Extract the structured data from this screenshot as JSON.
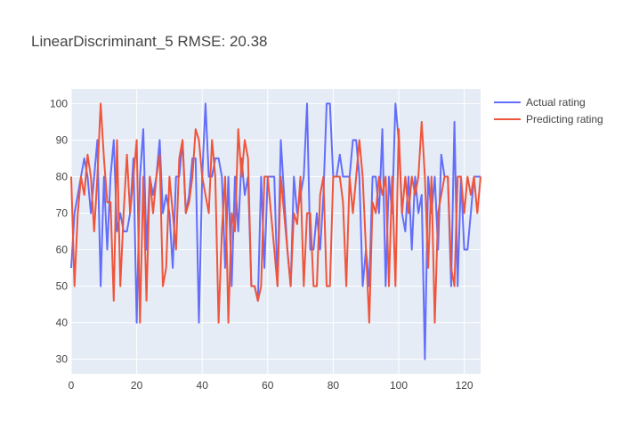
{
  "chart_data": {
    "type": "line",
    "title": "LinearDiscriminant_5 RMSE: 20.38",
    "xlabel": "",
    "ylabel": "",
    "xlim": [
      0,
      125
    ],
    "ylim": [
      26,
      104
    ],
    "x_ticks": [
      0,
      20,
      40,
      60,
      80,
      100,
      120
    ],
    "y_ticks": [
      30,
      40,
      50,
      60,
      70,
      80,
      90,
      100
    ],
    "grid": true,
    "legend_position": "top-right",
    "plot_bg": "#e5ecf6",
    "series": [
      {
        "name": "Actual rating",
        "color": "#636efa",
        "values": [
          55,
          70,
          75,
          80,
          85,
          80,
          70,
          80,
          90,
          50,
          80,
          60,
          80,
          90,
          65,
          70,
          65,
          65,
          70,
          85,
          40,
          80,
          93,
          60,
          80,
          75,
          80,
          90,
          70,
          75,
          70,
          55,
          80,
          80,
          90,
          70,
          75,
          85,
          85,
          40,
          80,
          100,
          80,
          80,
          85,
          85,
          80,
          55,
          80,
          50,
          80,
          65,
          85,
          75,
          80,
          50,
          50,
          46,
          80,
          55,
          80,
          80,
          80,
          50,
          90,
          75,
          60,
          50,
          80,
          70,
          75,
          80,
          100,
          60,
          60,
          70,
          60,
          75,
          100,
          100,
          80,
          80,
          86,
          80,
          80,
          80,
          90,
          90,
          80,
          50,
          60,
          50,
          80,
          80,
          70,
          93,
          50,
          80,
          70,
          100,
          90,
          70,
          65,
          80,
          60,
          80,
          70,
          75,
          30,
          80,
          70,
          80,
          60,
          86,
          80,
          80,
          50,
          95,
          50,
          80,
          60,
          60,
          70,
          80,
          80,
          80
        ]
      },
      {
        "name": "Predicting rating",
        "color": "#ef553b",
        "values": [
          80,
          50,
          70,
          80,
          75,
          86,
          80,
          65,
          80,
          100,
          85,
          73,
          73,
          46,
          90,
          50,
          70,
          86,
          70,
          80,
          90,
          40,
          80,
          46,
          80,
          70,
          80,
          86,
          50,
          55,
          80,
          70,
          60,
          85,
          90,
          70,
          73,
          80,
          93,
          90,
          80,
          75,
          70,
          90,
          80,
          40,
          65,
          80,
          40,
          70,
          65,
          93,
          80,
          90,
          85,
          50,
          50,
          46,
          50,
          80,
          80,
          70,
          60,
          50,
          80,
          70,
          60,
          50,
          70,
          67,
          80,
          50,
          70,
          70,
          50,
          50,
          75,
          80,
          50,
          50,
          80,
          80,
          80,
          73,
          50,
          80,
          70,
          80,
          90,
          80,
          60,
          40,
          73,
          70,
          80,
          75,
          80,
          50,
          80,
          50,
          93,
          70,
          80,
          70,
          80,
          75,
          80,
          95,
          80,
          55,
          80,
          40,
          70,
          75,
          80,
          80,
          55,
          50,
          80,
          80,
          70,
          80,
          75,
          80,
          70,
          80
        ]
      }
    ]
  }
}
